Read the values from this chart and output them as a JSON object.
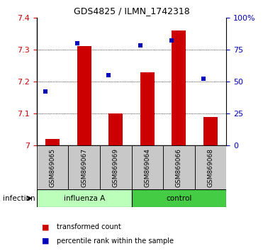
{
  "title": "GDS4825 / ILMN_1742318",
  "samples": [
    "GSM869065",
    "GSM869067",
    "GSM869069",
    "GSM869064",
    "GSM869066",
    "GSM869068"
  ],
  "red_values": [
    7.02,
    7.31,
    7.1,
    7.23,
    7.36,
    7.09
  ],
  "blue_values": [
    42,
    80,
    55,
    78,
    82,
    52
  ],
  "ylim_left": [
    7.0,
    7.4
  ],
  "ylim_right": [
    0,
    100
  ],
  "yticks_left": [
    7.0,
    7.1,
    7.2,
    7.3,
    7.4
  ],
  "yticks_right": [
    0,
    25,
    50,
    75,
    100
  ],
  "ytick_labels_right": [
    "0",
    "25",
    "50",
    "75",
    "100%"
  ],
  "red_color": "#cc0000",
  "blue_color": "#0000bb",
  "bar_width": 0.45,
  "bg_color": "#c8c8c8",
  "influenza_color": "#bbffbb",
  "control_color": "#44cc44",
  "legend_red": "transformed count",
  "legend_blue": "percentile rank within the sample",
  "title_fontsize": 9,
  "group_label": "infection"
}
